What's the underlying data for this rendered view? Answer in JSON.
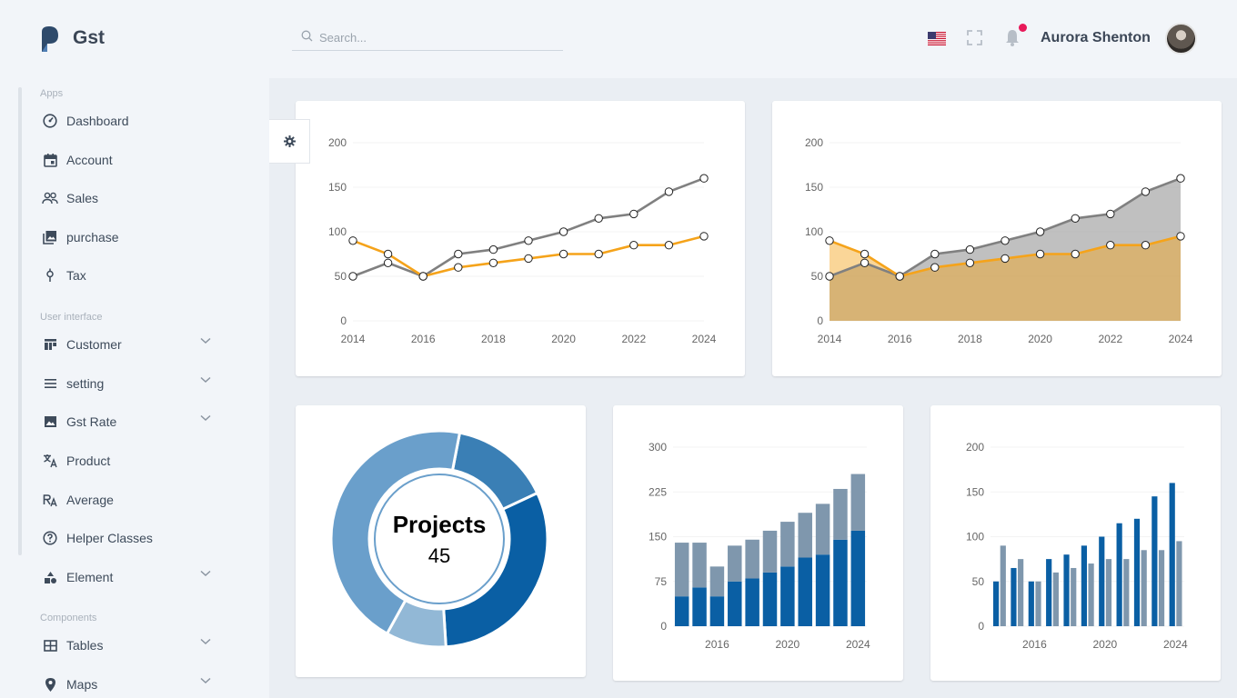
{
  "app": {
    "brand": "Gst"
  },
  "header": {
    "search_placeholder": "Search...",
    "user_name": "Aurora Shenton"
  },
  "sidebar": {
    "sections": [
      "Apps",
      "User interface",
      "Components"
    ],
    "items": [
      {
        "label": "Dashboard",
        "icon": "dashboard-icon"
      },
      {
        "label": "Account",
        "icon": "calendar-icon"
      },
      {
        "label": "Sales",
        "icon": "people-icon"
      },
      {
        "label": "purchase",
        "icon": "image-collection-icon"
      },
      {
        "label": "Tax",
        "icon": "pin-icon"
      },
      {
        "label": "Customer",
        "icon": "layout-icon"
      },
      {
        "label": "setting",
        "icon": "menu-icon"
      },
      {
        "label": "Gst Rate",
        "icon": "image-icon"
      },
      {
        "label": "Product",
        "icon": "translate-icon"
      },
      {
        "label": "Average",
        "icon": "text-format-icon"
      },
      {
        "label": "Helper Classes",
        "icon": "help-circle-icon"
      },
      {
        "label": "Element",
        "icon": "shapes-icon"
      },
      {
        "label": "Tables",
        "icon": "table-icon"
      },
      {
        "label": "Maps",
        "icon": "map-pin-icon"
      }
    ]
  },
  "colors": {
    "orange": "#f5a31a",
    "gray": "#808080",
    "blue_dark": "#0a5fa4",
    "blue_gray": "#7f97ad"
  },
  "chart_data": [
    {
      "type": "line",
      "x": [
        2014,
        2015,
        2016,
        2017,
        2018,
        2019,
        2020,
        2021,
        2022,
        2023,
        2024
      ],
      "xticks": [
        "2014",
        "2016",
        "2018",
        "2020",
        "2022",
        "2024"
      ],
      "ylim": [
        0,
        200
      ],
      "yticks": [
        "0",
        "50",
        "100",
        "150",
        "200"
      ],
      "series": [
        {
          "values": [
            50,
            65,
            50,
            75,
            80,
            90,
            100,
            115,
            120,
            145,
            160
          ],
          "color": "#808080"
        },
        {
          "values": [
            90,
            75,
            50,
            60,
            65,
            70,
            75,
            75,
            85,
            85,
            95
          ],
          "color": "#f5a31a"
        }
      ]
    },
    {
      "type": "area",
      "x": [
        2014,
        2015,
        2016,
        2017,
        2018,
        2019,
        2020,
        2021,
        2022,
        2023,
        2024
      ],
      "xticks": [
        "2014",
        "2016",
        "2018",
        "2020",
        "2022",
        "2024"
      ],
      "ylim": [
        0,
        200
      ],
      "yticks": [
        "0",
        "50",
        "100",
        "150",
        "200"
      ],
      "series": [
        {
          "values": [
            50,
            65,
            50,
            75,
            80,
            90,
            100,
            115,
            120,
            145,
            160
          ],
          "color": "#808080"
        },
        {
          "values": [
            90,
            75,
            50,
            60,
            65,
            70,
            75,
            75,
            85,
            85,
            95
          ],
          "color": "#f5a31a"
        }
      ]
    },
    {
      "type": "pie",
      "center_title": "Projects",
      "center_value": "45",
      "slices": [
        {
          "value": 15,
          "color": "#3a7fb5"
        },
        {
          "value": 31,
          "color": "#0a5fa4"
        },
        {
          "value": 9,
          "color": "#92b8d6"
        },
        {
          "value": 45,
          "color": "#6a9fcb"
        }
      ]
    },
    {
      "type": "bar",
      "stacked": true,
      "x": [
        2014,
        2015,
        2016,
        2017,
        2018,
        2019,
        2020,
        2021,
        2022,
        2023,
        2024
      ],
      "xticks": [
        "2016",
        "2020",
        "2024"
      ],
      "ylim": [
        0,
        300
      ],
      "yticks": [
        "0",
        "75",
        "150",
        "225",
        "300"
      ],
      "series": [
        {
          "values": [
            50,
            65,
            50,
            75,
            80,
            90,
            100,
            115,
            120,
            145,
            160
          ],
          "color": "#0a5fa4"
        },
        {
          "values": [
            90,
            75,
            50,
            60,
            65,
            70,
            75,
            75,
            85,
            85,
            95
          ],
          "color": "#7f97ad"
        }
      ]
    },
    {
      "type": "bar",
      "stacked": false,
      "x": [
        2014,
        2015,
        2016,
        2017,
        2018,
        2019,
        2020,
        2021,
        2022,
        2023,
        2024
      ],
      "xticks": [
        "2016",
        "2020",
        "2024"
      ],
      "ylim": [
        0,
        200
      ],
      "yticks": [
        "0",
        "50",
        "100",
        "150",
        "200"
      ],
      "series": [
        {
          "values": [
            50,
            65,
            50,
            75,
            80,
            90,
            100,
            115,
            120,
            145,
            160
          ],
          "color": "#0a5fa4"
        },
        {
          "values": [
            90,
            75,
            50,
            60,
            65,
            70,
            75,
            75,
            85,
            85,
            95
          ],
          "color": "#7f97ad"
        }
      ]
    }
  ]
}
